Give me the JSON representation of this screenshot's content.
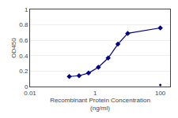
{
  "chart_data": {
    "type": "line",
    "xlabel": "Recombinant Protein Concentration\n(ng/ml)",
    "ylabel": "OD450",
    "x": [
      0.16,
      0.32,
      0.625,
      1.25,
      2.5,
      5,
      10,
      100
    ],
    "series": [
      {
        "values": [
          0.13,
          0.14,
          0.175,
          0.25,
          0.37,
          0.55,
          0.69,
          0.76
        ],
        "color": "#00008B",
        "marker": "diamond",
        "type": "line"
      },
      {
        "values": [
          null,
          null,
          null,
          null,
          null,
          null,
          null,
          0.02
        ],
        "color": "#00008B",
        "marker": "circle",
        "type": "scatter"
      }
    ],
    "log": "x",
    "xlim": [
      0.01,
      200
    ],
    "xticks": [
      0.01,
      1,
      100
    ],
    "ylim": [
      0,
      1.0
    ],
    "yticks": [
      0,
      0.2,
      0.4,
      0.6,
      0.8,
      1
    ],
    "grid": "y"
  }
}
